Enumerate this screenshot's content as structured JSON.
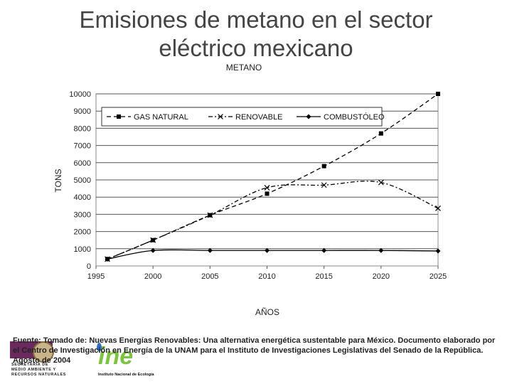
{
  "slide": {
    "title_line1": "Emisiones de metano en el sector",
    "title_line2": "eléctrico mexicano"
  },
  "source": {
    "text": "Fuente: Tomado de: Nuevas Energías Renovables: Una alternativa energética sustentable para México. Documento elaborado por el Centro de Investigación en Energía de la UNAM para el Instituto de Investigaciones Legislativas del Senado de la República. Agosto de 2004"
  },
  "logos": {
    "semarnat_text": "SECRETARÍA DE MEDIO AMBIENTE Y RECURSOS NATURALES",
    "ine_letters": "ine",
    "ine_caption": "Instituto Nacional de Ecología"
  },
  "chart_data": {
    "type": "line",
    "title": "METANO",
    "xlabel": "AÑOS",
    "ylabel": "TONS",
    "x": [
      1996,
      2000,
      2005,
      2010,
      2015,
      2020,
      2025
    ],
    "xticks": [
      1995,
      2000,
      2005,
      2010,
      2015,
      2020,
      2025
    ],
    "yticks": [
      0,
      1000,
      2000,
      3000,
      4000,
      5000,
      6000,
      7000,
      8000,
      9000,
      10000
    ],
    "xlim": [
      1995,
      2025
    ],
    "ylim": [
      0,
      10000
    ],
    "grid": "horizontal",
    "legend_position": "top",
    "series": [
      {
        "name": "GAS NATURAL",
        "values": [
          400,
          1500,
          2950,
          4200,
          5800,
          7700,
          10000
        ],
        "style": "dashed",
        "marker": "square",
        "color": "#000000"
      },
      {
        "name": "RENOVABLE",
        "values": [
          400,
          1500,
          2950,
          4550,
          4700,
          4850,
          3350
        ],
        "style": "dashdot",
        "marker": "x",
        "color": "#000000"
      },
      {
        "name": "COMBUSTÓLEO",
        "values": [
          400,
          900,
          900,
          900,
          900,
          900,
          870
        ],
        "style": "solid",
        "marker": "diamond",
        "color": "#000000"
      }
    ]
  }
}
